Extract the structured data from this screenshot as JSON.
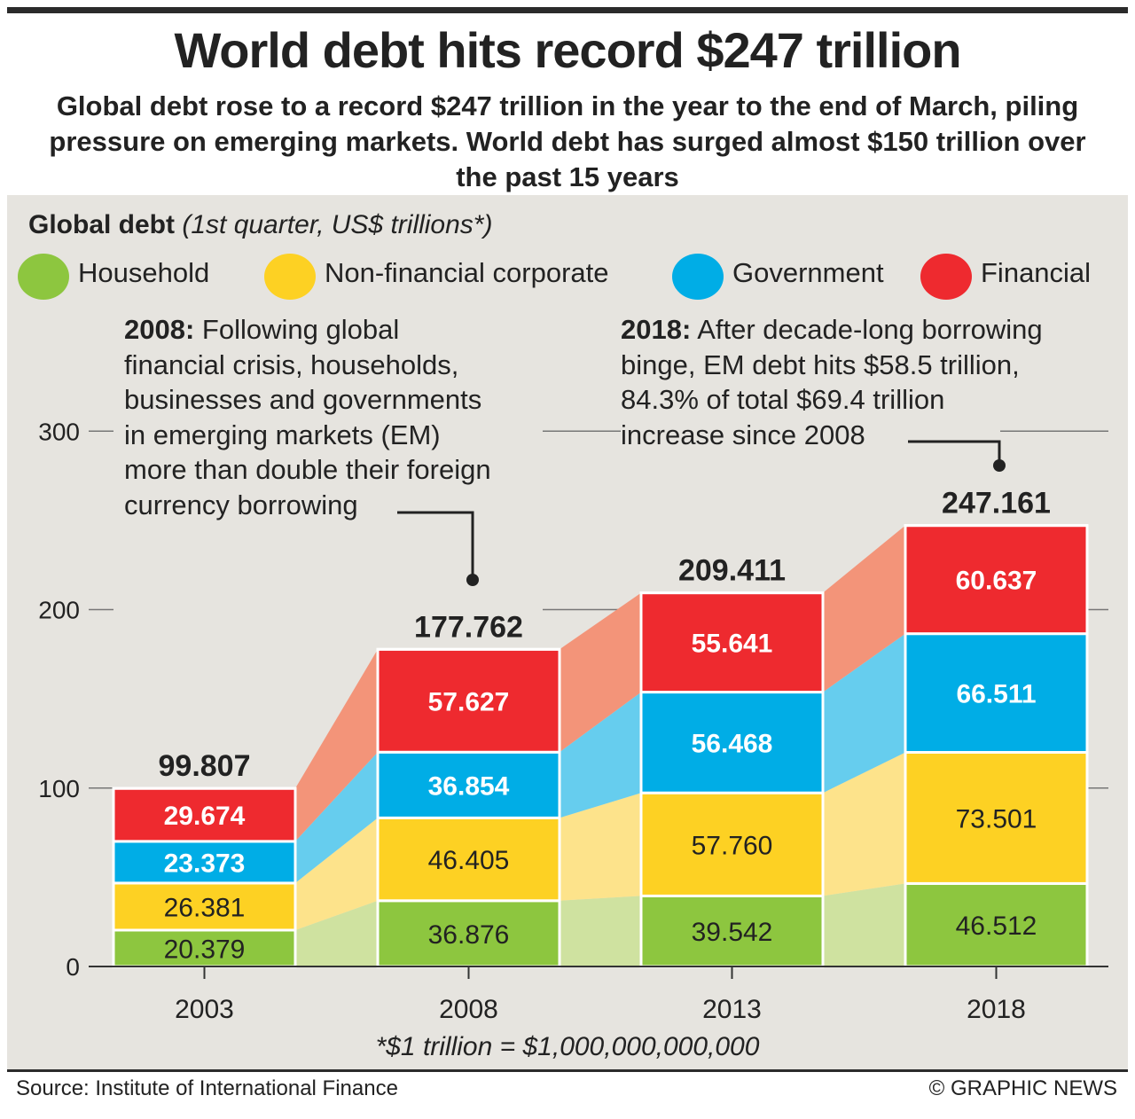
{
  "title": "World debt hits record $247 trillion",
  "subtitle": "Global debt rose to a record $247 trillion in the year to the end of March, piling pressure on emerging markets. World debt has surged almost $150 trillion over the past 15 years",
  "panel": {
    "title_bold": "Global debt",
    "title_italic": "(1st quarter, US$ trillions*)"
  },
  "notes": {
    "note2008_bold": "2008:",
    "note2008_lines": [
      " Following global",
      "financial crisis, households,",
      "businesses and governments",
      "in emerging markets (EM)",
      "more than double their foreign",
      "currency borrowing"
    ],
    "note2018_bold": "2018:",
    "note2018_lines": [
      " After decade-long borrowing",
      "binge, EM debt hits $58.5 trillion,",
      "84.3% of total $69.4 trillion",
      "increase since 2008"
    ]
  },
  "chart_data": {
    "type": "bar",
    "stacked": true,
    "categories": [
      "2003",
      "2008",
      "2013",
      "2018"
    ],
    "series": [
      {
        "name": "Household",
        "color": "#8dc63f",
        "values": [
          20.379,
          36.876,
          39.542,
          46.512
        ],
        "labels": [
          "20.379",
          "36.876",
          "39.542",
          "46.512"
        ]
      },
      {
        "name": "Non-financial corporate",
        "color": "#fdd123",
        "values": [
          26.381,
          46.405,
          57.76,
          73.501
        ],
        "labels": [
          "26.381",
          "46.405",
          "57.760",
          "73.501"
        ]
      },
      {
        "name": "Government",
        "color": "#00ade6",
        "values": [
          23.373,
          36.854,
          56.468,
          66.511
        ],
        "labels": [
          "23.373",
          "36.854",
          "56.468",
          "66.511"
        ]
      },
      {
        "name": "Financial",
        "color": "#ee2a2f",
        "values": [
          29.674,
          57.627,
          55.641,
          60.637
        ],
        "labels": [
          "29.674",
          "57.627",
          "55.641",
          "60.637"
        ]
      }
    ],
    "totals": [
      99.807,
      177.762,
      209.411,
      247.161
    ],
    "total_labels": [
      "99.807",
      "177.762",
      "209.411",
      "247.161"
    ],
    "area_colors": [
      "#cfe2a0",
      "#fde38b",
      "#66cdee",
      "#f39479"
    ],
    "title": "Global debt",
    "ylabel": "US$ trillions",
    "ylim": [
      0,
      300
    ],
    "yticks": [
      0,
      100,
      200,
      300
    ],
    "ytick_labels": [
      "0",
      "100",
      "200",
      "300"
    ]
  },
  "footnote": "*$1 trillion = $1,000,000,000,000",
  "source": "Source: Institute of International Finance",
  "credit": "© GRAPHIC NEWS"
}
